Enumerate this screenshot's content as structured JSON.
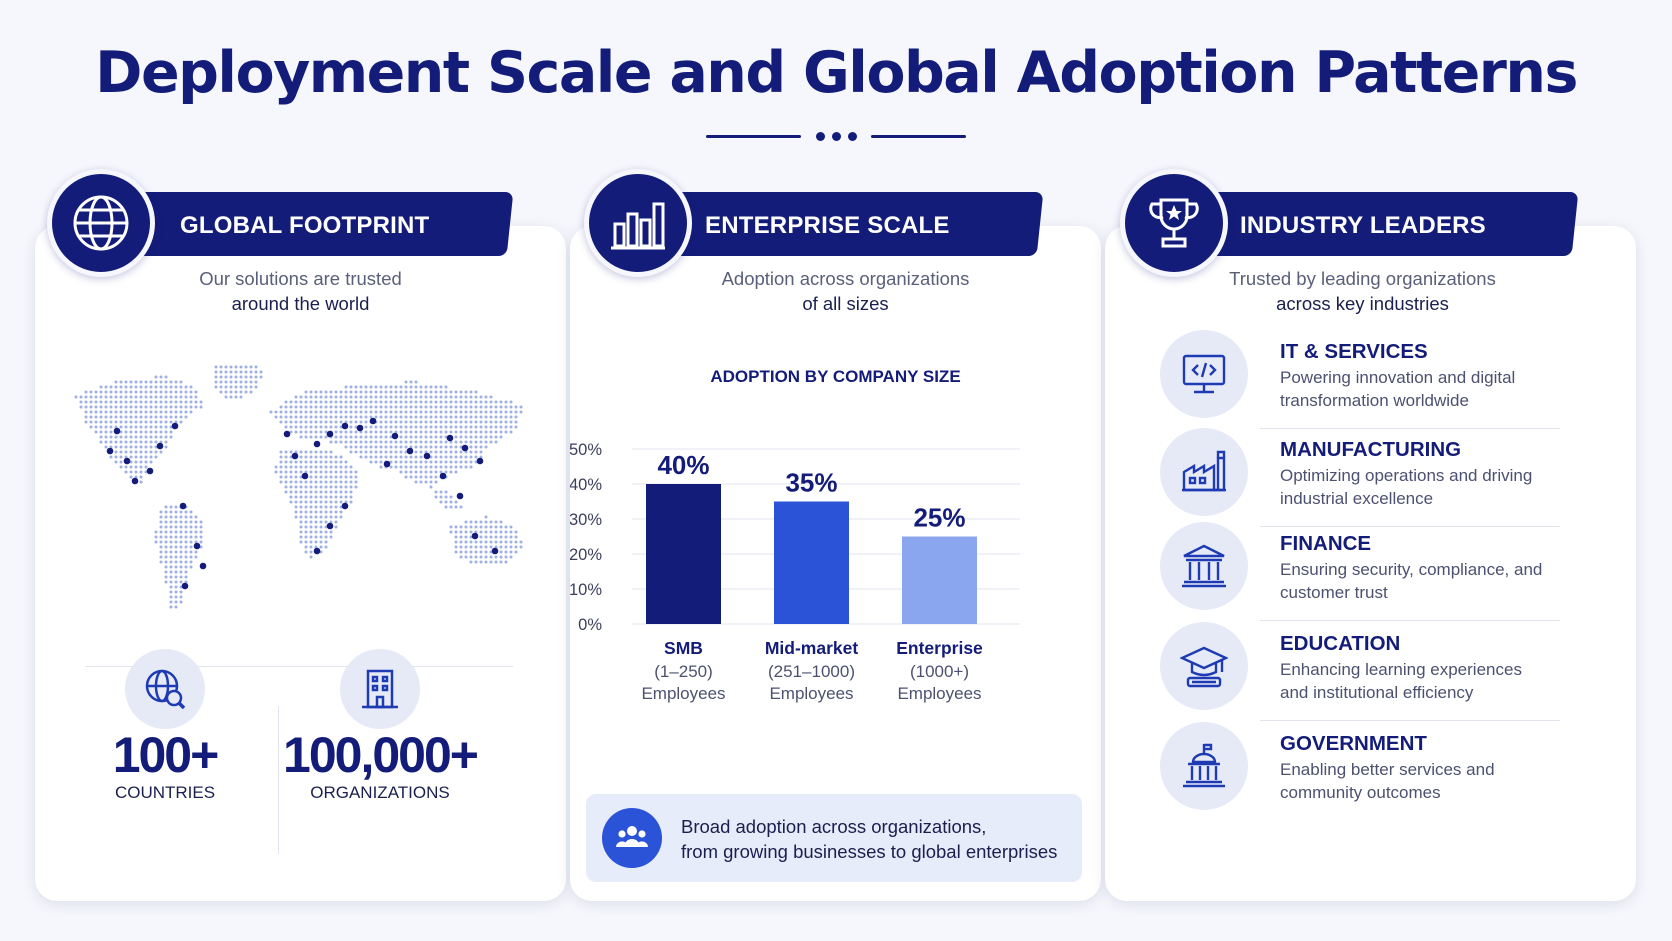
{
  "title": "Deployment Scale and Global Adoption Patterns",
  "colors": {
    "navy": "#141c7a",
    "blue": "#2b53d8",
    "light_blue": "#8aa6ee",
    "background": "#f6f7fc"
  },
  "panels": {
    "global": {
      "icon": "globe-icon",
      "label": "GLOBAL FOOTPRINT",
      "intro_line1": "Our solutions are trusted",
      "intro_line2": "around the world",
      "map_icon": "world-map-dots",
      "stats": [
        {
          "icon": "globe-search-icon",
          "value": "100+",
          "label": "COUNTRIES"
        },
        {
          "icon": "building-icon",
          "value": "100,000+",
          "label": "ORGANIZATIONS"
        }
      ]
    },
    "enterprise": {
      "icon": "bar-chart-icon",
      "label": "ENTERPRISE SCALE",
      "intro_line1": "Adoption across organizations",
      "intro_line2": "of all sizes",
      "callout_icon": "people-group-icon",
      "callout_line1": "Broad adoption across organizations,",
      "callout_line2": "from growing businesses to global enterprises"
    },
    "industries": {
      "icon": "trophy-icon",
      "label": "INDUSTRY LEADERS",
      "intro_line1": "Trusted by leading organizations",
      "intro_line2": "across key industries",
      "items": [
        {
          "icon": "monitor-code-icon",
          "name": "IT & SERVICES",
          "desc1": "Powering innovation and digital",
          "desc2": "transformation worldwide"
        },
        {
          "icon": "factory-icon",
          "name": "MANUFACTURING",
          "desc1": "Optimizing operations and driving",
          "desc2": "industrial excellence"
        },
        {
          "icon": "bank-icon",
          "name": "FINANCE",
          "desc1": "Ensuring security, compliance, and",
          "desc2": "customer trust"
        },
        {
          "icon": "graduation-cap-icon",
          "name": "EDUCATION",
          "desc1": "Enhancing learning experiences",
          "desc2": "and institutional efficiency"
        },
        {
          "icon": "government-building-icon",
          "name": "GOVERNMENT",
          "desc1": "Enabling better services and",
          "desc2": "community outcomes"
        }
      ]
    }
  },
  "chart_data": {
    "type": "bar",
    "title": "ADOPTION BY COMPANY SIZE",
    "categories": [
      "SMB",
      "Mid-market",
      "Enterprise"
    ],
    "category_sublines": [
      [
        "(1–250)",
        "Employees"
      ],
      [
        "(251–1000)",
        "Employees"
      ],
      [
        "(1000+)",
        "Employees"
      ]
    ],
    "values": [
      40,
      35,
      25
    ],
    "value_labels": [
      "40%",
      "35%",
      "25%"
    ],
    "bar_colors": [
      "#141c7a",
      "#2b53d8",
      "#8aa6ee"
    ],
    "yticks": [
      "0%",
      "10%",
      "20%",
      "30%",
      "40%",
      "50%"
    ],
    "ylim": [
      0,
      50
    ],
    "grid": true,
    "xlabel": "",
    "ylabel": ""
  }
}
